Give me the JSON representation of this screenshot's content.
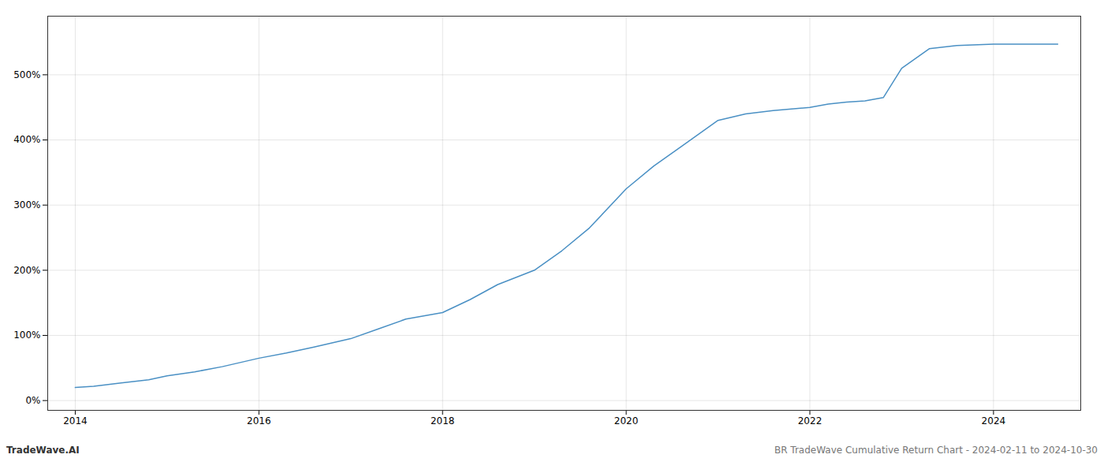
{
  "chart_data": {
    "type": "line",
    "x": [
      2014.0,
      2014.2,
      2014.5,
      2014.8,
      2015.0,
      2015.3,
      2015.6,
      2016.0,
      2016.3,
      2016.6,
      2017.0,
      2017.3,
      2017.6,
      2018.0,
      2018.3,
      2018.6,
      2019.0,
      2019.3,
      2019.6,
      2020.0,
      2020.3,
      2020.6,
      2021.0,
      2021.3,
      2021.6,
      2022.0,
      2022.2,
      2022.4,
      2022.6,
      2022.8,
      2023.0,
      2023.3,
      2023.6,
      2024.0,
      2024.3,
      2024.7
    ],
    "values": [
      20,
      22,
      27,
      32,
      38,
      44,
      52,
      65,
      73,
      82,
      95,
      110,
      125,
      135,
      155,
      178,
      200,
      230,
      265,
      325,
      360,
      390,
      430,
      440,
      445,
      450,
      455,
      458,
      460,
      465,
      510,
      540,
      545,
      547,
      547,
      547
    ],
    "color": "#4a90c4",
    "xlim": [
      2013.7,
      2024.95
    ],
    "xticks": [
      2014,
      2016,
      2018,
      2020,
      2022,
      2024
    ],
    "ylim": [
      -15,
      590
    ],
    "yticks": [
      {
        "value": 0,
        "label": "0%"
      },
      {
        "value": 100,
        "label": "100%"
      },
      {
        "value": 200,
        "label": "200%"
      },
      {
        "value": 300,
        "label": "300%"
      },
      {
        "value": 400,
        "label": "400%"
      },
      {
        "value": 500,
        "label": "500%"
      }
    ],
    "grid": true,
    "annotations": [
      "TradeWave.AI",
      "BR TradeWave Cumulative Return Chart - 2024-02-11 to 2024-10-30"
    ]
  }
}
